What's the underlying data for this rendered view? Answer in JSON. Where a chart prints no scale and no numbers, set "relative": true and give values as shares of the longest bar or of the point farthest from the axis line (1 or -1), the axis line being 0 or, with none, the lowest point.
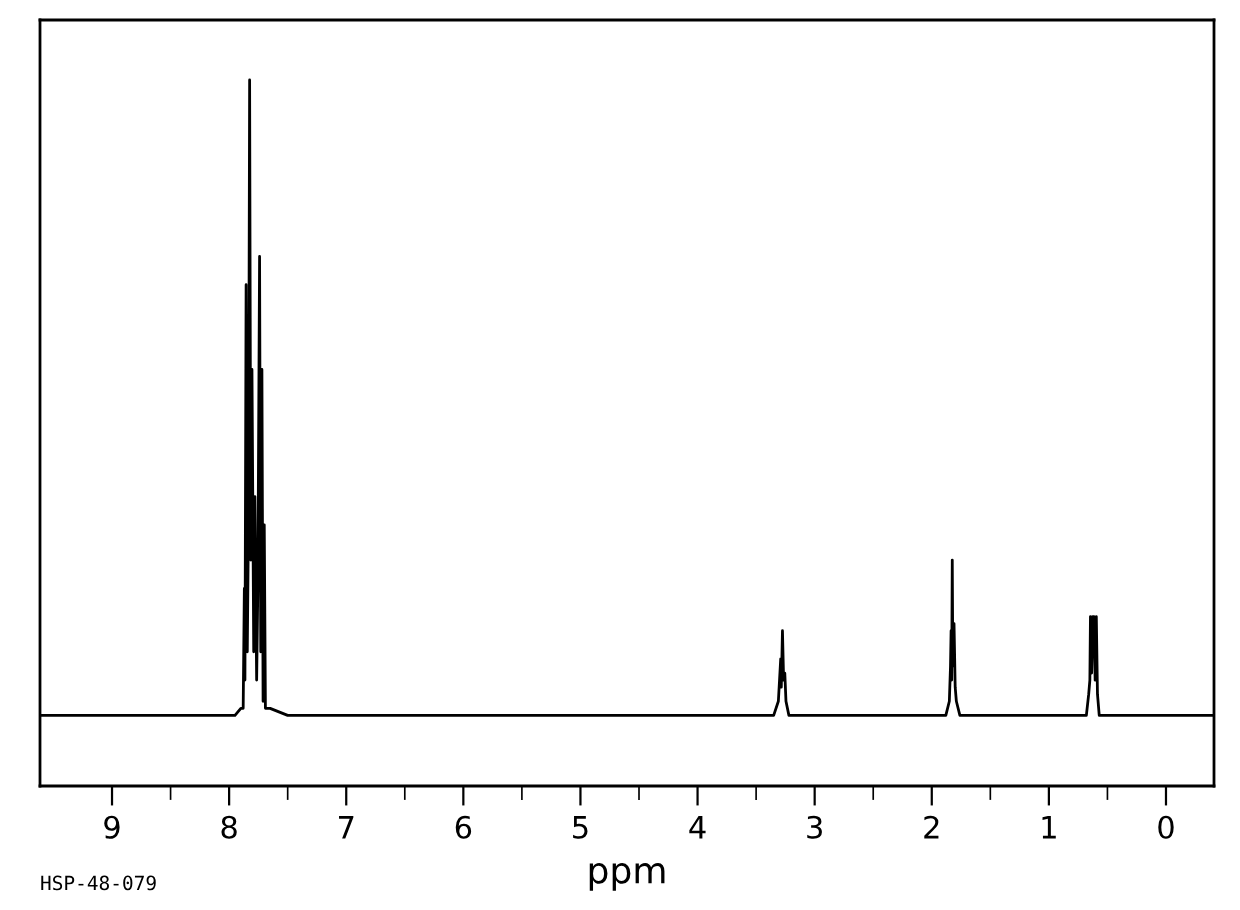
{
  "chart_data": {
    "type": "line",
    "relative": true,
    "xlabel": "ppm",
    "annotations": [
      "HSP-48-079"
    ],
    "xlim": [
      9.615,
      -0.41
    ],
    "xticks": [
      9,
      8,
      7,
      6,
      5,
      4,
      3,
      2,
      1,
      0
    ],
    "tick_labels": "x",
    "grid": false,
    "legend": false,
    "series": [
      {
        "color": "#000000",
        "x": [
          9.6,
          7.95,
          7.9,
          7.88,
          7.87,
          7.865,
          7.855,
          7.845,
          7.835,
          7.825,
          7.815,
          7.805,
          7.79,
          7.78,
          7.765,
          7.755,
          7.74,
          7.73,
          7.72,
          7.71,
          7.7,
          7.69,
          7.65,
          7.5,
          7.45,
          3.35,
          3.31,
          3.3,
          3.29,
          3.285,
          3.275,
          3.265,
          3.255,
          3.245,
          3.22,
          1.88,
          1.85,
          1.84,
          1.835,
          1.83,
          1.825,
          1.82,
          1.81,
          1.8,
          1.79,
          1.76,
          0.68,
          0.66,
          0.65,
          0.645,
          0.635,
          0.625,
          0.615,
          0.605,
          0.595,
          0.585,
          0.57,
          -0.41
        ],
        "values": [
          0.1,
          0.1,
          0.11,
          0.11,
          0.28,
          0.15,
          0.71,
          0.19,
          0.37,
          1,
          0.32,
          0.59,
          0.19,
          0.41,
          0.15,
          0.28,
          0.75,
          0.19,
          0.59,
          0.12,
          0.37,
          0.11,
          0.11,
          0.1,
          0.1,
          0.1,
          0.12,
          0.15,
          0.18,
          0.14,
          0.22,
          0.15,
          0.16,
          0.12,
          0.1,
          0.1,
          0.12,
          0.17,
          0.22,
          0.15,
          0.32,
          0.17,
          0.23,
          0.14,
          0.12,
          0.1,
          0.1,
          0.13,
          0.15,
          0.24,
          0.16,
          0.24,
          0.24,
          0.15,
          0.24,
          0.13,
          0.1,
          0.1
        ]
      }
    ]
  }
}
